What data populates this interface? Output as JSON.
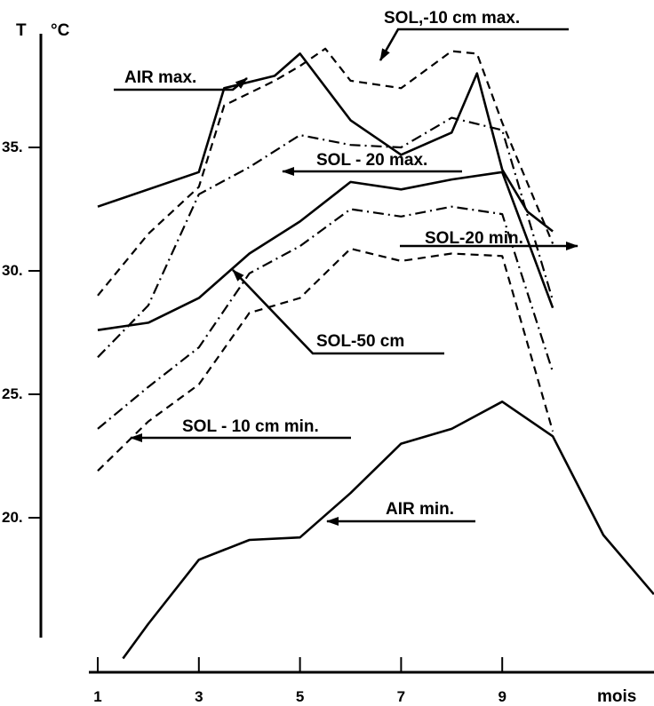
{
  "chart_data": {
    "type": "line",
    "title": "",
    "ylabel_symbol": "T",
    "ylabel_unit": "°C",
    "xlabel": "mois",
    "xlim": [
      1,
      12
    ],
    "ylim": [
      14,
      39
    ],
    "grid": false,
    "x_ticks": [
      {
        "value": 1,
        "label": "1"
      },
      {
        "value": 3,
        "label": "3"
      },
      {
        "value": 5,
        "label": "5"
      },
      {
        "value": 7,
        "label": "7"
      },
      {
        "value": 9,
        "label": "9"
      }
    ],
    "y_ticks": [
      {
        "value": 20,
        "label": "20."
      },
      {
        "value": 25,
        "label": "25."
      },
      {
        "value": 30,
        "label": "30."
      },
      {
        "value": 35,
        "label": "35."
      }
    ],
    "series": [
      {
        "name": "AIR max.",
        "style": "solid",
        "x": [
          1,
          3,
          3.5,
          4.5,
          5,
          6,
          7,
          8,
          8.5,
          9,
          9.5,
          10
        ],
        "y": [
          32.6,
          34.0,
          37.4,
          37.9,
          38.8,
          36.1,
          34.7,
          35.6,
          38.0,
          34.1,
          32.4,
          31.6
        ]
      },
      {
        "name": "SOL,-10 cm max.",
        "style": "dashed",
        "x": [
          1,
          2,
          3,
          3.5,
          4.5,
          5,
          5.5,
          6,
          7,
          8,
          8.5,
          9,
          10
        ],
        "y": [
          29.0,
          31.5,
          33.4,
          36.7,
          37.7,
          38.3,
          39.0,
          37.7,
          37.4,
          38.9,
          38.8,
          36.0,
          31.1
        ]
      },
      {
        "name": "SOL-20 max.",
        "style": "dashdot",
        "x": [
          1,
          2,
          3,
          4,
          5,
          6,
          7,
          8,
          9,
          10
        ],
        "y": [
          26.5,
          28.6,
          33.1,
          34.2,
          35.5,
          35.1,
          35.0,
          36.2,
          35.7,
          28.8
        ]
      },
      {
        "name": "SOL-50 cm",
        "style": "solid",
        "x": [
          1,
          2,
          3,
          4,
          5,
          6,
          7,
          8,
          9,
          10
        ],
        "y": [
          27.6,
          27.9,
          28.9,
          30.7,
          32.0,
          33.6,
          33.3,
          33.7,
          34.0,
          28.5
        ]
      },
      {
        "name": "SOL-20 min.",
        "style": "dashdot",
        "x": [
          1,
          2,
          3,
          4,
          5,
          6,
          7,
          8,
          9,
          10
        ],
        "y": [
          23.6,
          25.3,
          26.9,
          29.9,
          31.0,
          32.5,
          32.2,
          32.6,
          32.3,
          25.9
        ]
      },
      {
        "name": "SOL-10cm min.",
        "style": "dashed",
        "x": [
          1,
          2,
          3,
          4,
          5,
          6,
          7,
          8,
          9,
          10
        ],
        "y": [
          21.9,
          23.9,
          25.4,
          28.3,
          28.9,
          30.9,
          30.4,
          30.7,
          30.6,
          23.5
        ]
      },
      {
        "name": "AIR min.",
        "style": "solid",
        "x": [
          1.5,
          2,
          3,
          4,
          5,
          6,
          7,
          8,
          9,
          10,
          11,
          12
        ],
        "y": [
          14.3,
          15.7,
          18.3,
          19.1,
          19.2,
          21.0,
          23.0,
          23.6,
          24.7,
          23.3,
          19.3,
          16.9
        ]
      }
    ],
    "annotations": [
      {
        "text": "AIR max.",
        "series": "AIR max."
      },
      {
        "text": "SOL,-10 cm   max.",
        "series": "SOL,-10 cm max."
      },
      {
        "text": "SOL - 20 max.",
        "series": "SOL-20 max."
      },
      {
        "text": "SOL-20 min.",
        "series": "SOL-20 min."
      },
      {
        "text": "SOL-50 cm",
        "series": "SOL-50 cm"
      },
      {
        "text": "SOL - 10 cm  min.",
        "series": "SOL-10cm min."
      },
      {
        "text": "AIR min.",
        "series": "AIR min."
      }
    ]
  }
}
